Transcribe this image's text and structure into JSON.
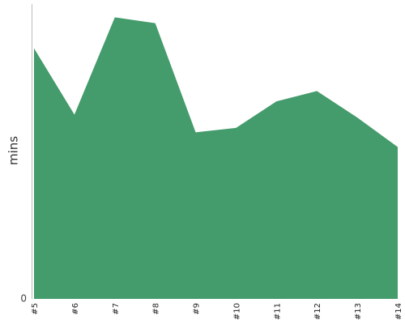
{
  "chart_data": {
    "type": "area",
    "ylabel": "mins",
    "xlabel": "",
    "title": "",
    "categories": [
      "#5",
      "#6",
      "#7",
      "#8",
      "#9",
      "#10",
      "#11",
      "#12",
      "#13",
      "#14"
    ],
    "y_tick_labels": [
      "0"
    ],
    "ylim": [
      0,
      100
    ],
    "grid": false,
    "legend": "none",
    "series": [
      {
        "values": [
          85,
          62.5,
          95.5,
          93.5,
          56.5,
          58,
          67,
          70.5,
          61.5,
          51.5
        ],
        "color": "#449b6b"
      }
    ]
  }
}
